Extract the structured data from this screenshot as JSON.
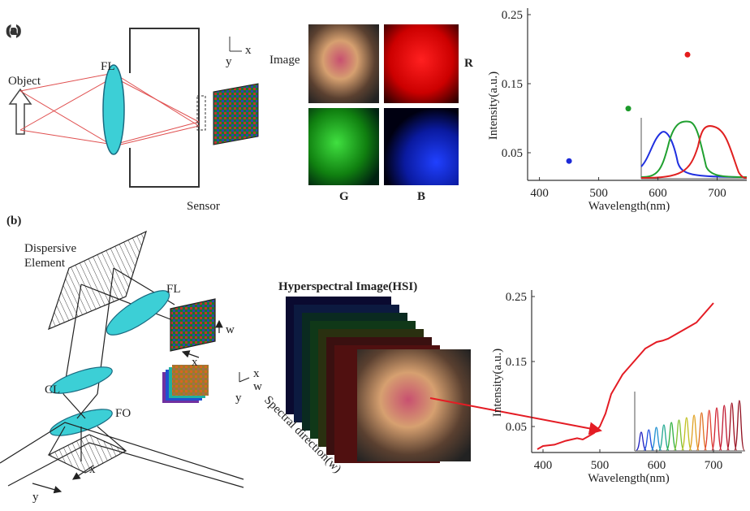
{
  "panel_a": {
    "label": "(a)",
    "object": "Object",
    "lens": "FL",
    "sensor": "Sensor",
    "axis_x": "x",
    "axis_y": "y",
    "image": "Image",
    "r": "R",
    "g": "G",
    "b": "B"
  },
  "panel_b": {
    "label": "(b)",
    "dispersive": [
      "Dispersive",
      "Element"
    ],
    "lens": "FL",
    "cl": "CL",
    "fo": "FO",
    "cube1_w": "w",
    "cube1_x": "x",
    "cube2_x": "x",
    "cube2_w": "w",
    "cube2_y": "y",
    "floor_x": "x",
    "floor_y": "y",
    "hsi": "Hyperspectral Image(HSI)",
    "spectral": "Spectral direction(w)"
  },
  "chart_data": [
    {
      "type": "scatter",
      "x": [
        450,
        550,
        650
      ],
      "values": [
        0.038,
        0.114,
        0.192
      ],
      "colors": [
        "#1c2ad8",
        "#1c9a2a",
        "#e41c1c"
      ],
      "xlabel": "Wavelength(nm)",
      "ylabel": "Intensity(a.u.)",
      "xlim": [
        380,
        750
      ],
      "ylim": [
        0.01,
        0.25
      ],
      "xticks": [
        400,
        500,
        600,
        700
      ],
      "yticks": [
        0.05,
        0.15,
        0.25
      ]
    },
    {
      "type": "line",
      "color": "#e41c24",
      "x": [
        390,
        400,
        420,
        440,
        460,
        470,
        480,
        490,
        500,
        510,
        520,
        530,
        540,
        550,
        560,
        570,
        580,
        590,
        600,
        610,
        620,
        630,
        640,
        650,
        660,
        670,
        680,
        690,
        700
      ],
      "values": [
        0.015,
        0.02,
        0.022,
        0.028,
        0.032,
        0.03,
        0.035,
        0.04,
        0.05,
        0.07,
        0.1,
        0.115,
        0.13,
        0.14,
        0.15,
        0.16,
        0.17,
        0.175,
        0.18,
        0.182,
        0.185,
        0.19,
        0.195,
        0.2,
        0.205,
        0.21,
        0.22,
        0.23,
        0.24
      ],
      "xlabel": "Wavelength(nm)",
      "ylabel": "Intensity(a.u.)",
      "xlim": [
        380,
        750
      ],
      "ylim": [
        0.01,
        0.25
      ],
      "xticks": [
        400,
        500,
        600,
        700
      ],
      "yticks": [
        0.05,
        0.15,
        0.25
      ]
    }
  ]
}
